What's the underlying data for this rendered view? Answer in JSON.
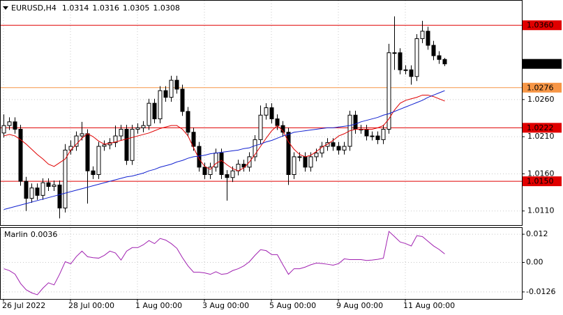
{
  "chart_data": {
    "type": "candlestick",
    "title": "EURUSD,H4",
    "categories": [
      "26 Jul 2022",
      null,
      null,
      null,
      null,
      null,
      null,
      null,
      null,
      null,
      null,
      null,
      "28 Jul 00:00",
      null,
      null,
      null,
      null,
      null,
      null,
      null,
      null,
      null,
      null,
      null,
      "1 Aug 00:00",
      null,
      null,
      null,
      null,
      null,
      null,
      null,
      null,
      null,
      null,
      null,
      "3 Aug 00:00",
      null,
      null,
      null,
      null,
      null,
      null,
      null,
      null,
      null,
      null,
      null,
      "5 Aug 00:00",
      null,
      null,
      null,
      null,
      null,
      null,
      null,
      null,
      null,
      null,
      null,
      "9 Aug 00:00",
      null,
      null,
      null,
      null,
      null,
      null,
      null,
      null,
      null,
      null,
      null,
      "11 Aug 00:00",
      null,
      null,
      null,
      null,
      null,
      null,
      null
    ],
    "open": [
      1.0215,
      1.0225,
      1.023,
      1.022,
      1.015,
      1.0127,
      1.0141,
      1.0131,
      1.0148,
      1.0143,
      1.0145,
      1.0114,
      1.0192,
      1.0197,
      1.0211,
      1.0214,
      1.0164,
      1.0159,
      1.0197,
      1.0199,
      1.0202,
      1.0211,
      1.022,
      1.0178,
      1.022,
      1.0222,
      1.0225,
      1.0255,
      1.0234,
      1.0272,
      1.0263,
      1.0286,
      1.0274,
      1.0244,
      1.0216,
      1.0197,
      1.0169,
      1.0159,
      1.0169,
      1.0188,
      1.0159,
      1.0155,
      1.0164,
      1.0173,
      1.0169,
      1.0183,
      1.0206,
      1.0239,
      1.0249,
      1.0234,
      1.0225,
      1.0216,
      1.0159,
      1.0183,
      1.0183,
      1.0169,
      1.0183,
      1.0188,
      1.0197,
      1.0202,
      1.0197,
      1.0192,
      1.0197,
      1.0239,
      1.022,
      1.022,
      1.0211,
      1.0211,
      1.0206,
      1.022,
      1.0323,
      1.0323,
      1.03,
      1.03,
      1.0291,
      1.0342,
      1.0352,
      1.0333,
      1.0319,
      1.0314
    ],
    "high": [
      1.024,
      1.0236,
      1.0236,
      1.0226,
      1.0156,
      1.0147,
      1.0147,
      1.0154,
      1.0154,
      1.0151,
      1.0151,
      1.02,
      1.0205,
      1.0217,
      1.023,
      1.022,
      1.017,
      1.0203,
      1.0205,
      1.0208,
      1.0225,
      1.0226,
      1.0226,
      1.0226,
      1.0228,
      1.0231,
      1.0261,
      1.0261,
      1.0278,
      1.0278,
      1.0292,
      1.0292,
      1.028,
      1.025,
      1.0222,
      1.0203,
      1.0175,
      1.0175,
      1.0194,
      1.0194,
      1.0165,
      1.017,
      1.0179,
      1.0179,
      1.0189,
      1.0212,
      1.0252,
      1.0255,
      1.0255,
      1.024,
      1.0231,
      1.0222,
      1.0189,
      1.0189,
      1.0189,
      1.0189,
      1.0194,
      1.0203,
      1.0208,
      1.0208,
      1.0203,
      1.0203,
      1.0245,
      1.0245,
      1.0226,
      1.0226,
      1.0217,
      1.0217,
      1.0226,
      1.0335,
      1.0372,
      1.0329,
      1.0306,
      1.0306,
      1.0348,
      1.0366,
      1.0358,
      1.0339,
      1.0325,
      1.0316
    ],
    "low": [
      1.0209,
      1.0219,
      1.0214,
      1.0144,
      1.011,
      1.0121,
      1.0125,
      1.0125,
      1.0137,
      1.0137,
      1.01,
      1.0108,
      1.0186,
      1.0191,
      1.0205,
      1.012,
      1.0153,
      1.0153,
      1.0191,
      1.0193,
      1.0196,
      1.0205,
      1.0172,
      1.0172,
      1.0214,
      1.0216,
      1.0219,
      1.0228,
      1.0228,
      1.0257,
      1.0257,
      1.0268,
      1.0238,
      1.021,
      1.0191,
      1.0163,
      1.0153,
      1.0153,
      1.0163,
      1.0153,
      1.0124,
      1.0149,
      1.0158,
      1.0163,
      1.0163,
      1.0177,
      1.02,
      1.0233,
      1.0228,
      1.0219,
      1.021,
      1.0145,
      1.0153,
      1.0177,
      1.0163,
      1.0163,
      1.0177,
      1.0182,
      1.0191,
      1.0191,
      1.0186,
      1.0186,
      1.0191,
      1.0214,
      1.0214,
      1.0205,
      1.0205,
      1.02,
      1.02,
      1.0214,
      1.03,
      1.0294,
      1.0294,
      1.028,
      1.0285,
      1.0336,
      1.0327,
      1.0313,
      1.0308,
      1.0305
    ],
    "close": [
      1.0225,
      1.023,
      1.022,
      1.015,
      1.0127,
      1.0141,
      1.0131,
      1.0148,
      1.0143,
      1.0145,
      1.0114,
      1.0192,
      1.0197,
      1.0211,
      1.0214,
      1.0164,
      1.0159,
      1.0197,
      1.0199,
      1.0202,
      1.0211,
      1.022,
      1.0178,
      1.022,
      1.0222,
      1.0225,
      1.0255,
      1.0234,
      1.0272,
      1.0263,
      1.0286,
      1.0274,
      1.0244,
      1.0216,
      1.0197,
      1.0169,
      1.0159,
      1.0169,
      1.0188,
      1.0159,
      1.0155,
      1.0164,
      1.0173,
      1.0169,
      1.0183,
      1.0206,
      1.0239,
      1.0249,
      1.0234,
      1.0225,
      1.0216,
      1.0159,
      1.0183,
      1.0183,
      1.0169,
      1.0183,
      1.0188,
      1.0197,
      1.0202,
      1.0197,
      1.0192,
      1.0197,
      1.0239,
      1.022,
      1.022,
      1.0211,
      1.0211,
      1.0206,
      1.022,
      1.0323,
      1.0323,
      1.03,
      1.03,
      1.0291,
      1.0342,
      1.0352,
      1.0333,
      1.0319,
      1.0314,
      1.0308
    ],
    "up_color": "#ffffff",
    "down_color": "#000000",
    "moving_averages": [
      {
        "color": "#e00000",
        "values": [
          1.0211,
          1.0213,
          1.0211,
          1.0206,
          1.02,
          1.0193,
          1.0186,
          1.018,
          1.0173,
          1.017,
          1.0175,
          1.018,
          1.0192,
          1.02,
          1.0208,
          1.0214,
          1.021,
          1.0204,
          1.02,
          1.0201,
          1.0203,
          1.0205,
          1.0207,
          1.0209,
          1.0211,
          1.0213,
          1.0215,
          1.0218,
          1.0221,
          1.0223,
          1.0225,
          1.0225,
          1.022,
          1.0211,
          1.0195,
          1.018,
          1.017,
          1.0166,
          1.0174,
          1.0178,
          1.0172,
          1.0167,
          1.0164,
          1.0168,
          1.0176,
          1.0186,
          1.0197,
          1.0208,
          1.0218,
          1.0225,
          1.0218,
          1.0203,
          1.0193,
          1.0186,
          1.0183,
          1.0185,
          1.019,
          1.0196,
          1.02,
          1.0205,
          1.0211,
          1.0214,
          1.0218,
          1.022,
          1.022,
          1.022,
          1.022,
          1.0222,
          1.0225,
          1.0234,
          1.0246,
          1.0255,
          1.0259,
          1.0261,
          1.0263,
          1.0266,
          1.0266,
          1.0264,
          1.0261,
          1.0258
        ]
      },
      {
        "color": "#1020d0",
        "values": [
          1.0112,
          1.0114,
          1.0116,
          1.0118,
          1.012,
          1.0122,
          1.0124,
          1.0126,
          1.0128,
          1.013,
          1.0132,
          1.0134,
          1.0136,
          1.0138,
          1.014,
          1.0142,
          1.0144,
          1.0146,
          1.0148,
          1.015,
          1.0152,
          1.0154,
          1.0156,
          1.0157,
          1.0159,
          1.0161,
          1.0164,
          1.0166,
          1.0169,
          1.0171,
          1.0173,
          1.0176,
          1.0178,
          1.0181,
          1.0183,
          1.0184,
          1.0185,
          1.0187,
          1.0188,
          1.0189,
          1.019,
          1.0191,
          1.0192,
          1.0194,
          1.0195,
          1.0198,
          1.02,
          1.0203,
          1.0205,
          1.0208,
          1.0211,
          1.0213,
          1.0216,
          1.0217,
          1.0218,
          1.0219,
          1.022,
          1.0221,
          1.0222,
          1.0222,
          1.0223,
          1.0224,
          1.0225,
          1.0227,
          1.023,
          1.0232,
          1.0234,
          1.0236,
          1.0239,
          1.0241,
          1.0244,
          1.0247,
          1.025,
          1.0253,
          1.0256,
          1.0259,
          1.0263,
          1.0266,
          1.0269,
          1.0272
        ]
      }
    ],
    "levels": [
      {
        "value": 1.036,
        "label": "1.0360",
        "color": "#e00000"
      },
      {
        "value": 1.0276,
        "label": "1.0276",
        "color": "#f79646"
      },
      {
        "value": 1.0222,
        "label": "1.0222",
        "color": "#e00000"
      },
      {
        "value": 1.015,
        "label": "1.0150",
        "color": "#e00000"
      }
    ],
    "ylim": [
      1.0091,
      1.0394
    ],
    "yticks": [
      {
        "value": 1.026,
        "label": "1.0260"
      },
      {
        "value": 1.021,
        "label": "1.0210"
      },
      {
        "value": 1.016,
        "label": "1.0160"
      },
      {
        "value": 1.011,
        "label": "1.0110"
      }
    ],
    "grid": true,
    "indicator": {
      "name": "Marlin",
      "value": 0.0036,
      "color": "#a020b0",
      "values": [
        -0.0027,
        -0.0035,
        -0.005,
        -0.009,
        -0.0117,
        -0.013,
        -0.0138,
        -0.011,
        -0.0087,
        -0.0096,
        -0.005,
        0.0003,
        -0.0006,
        0.0025,
        0.0048,
        0.0024,
        0.002,
        0.0018,
        0.003,
        0.0048,
        0.004,
        0.001,
        0.0048,
        0.0063,
        0.0063,
        0.0075,
        0.0093,
        0.008,
        0.0102,
        0.0095,
        0.008,
        0.006,
        0.002,
        -0.0015,
        -0.0042,
        -0.0042,
        -0.0045,
        -0.0051,
        -0.004,
        -0.0051,
        -0.0048,
        -0.0035,
        -0.0027,
        -0.0015,
        0.0003,
        0.003,
        0.0054,
        0.005,
        0.0033,
        0.0033,
        -0.001,
        -0.0051,
        -0.0027,
        -0.0027,
        -0.002,
        -0.001,
        -0.0003,
        -0.0005,
        -0.0008,
        -0.0012,
        -0.0005,
        0.0015,
        0.0012,
        0.0012,
        0.0012,
        0.0008,
        0.001,
        0.0013,
        0.0018,
        0.0132,
        0.011,
        0.0087,
        0.008,
        0.007,
        0.0114,
        0.011,
        0.009,
        0.007,
        0.0055,
        0.0036
      ],
      "ylim": [
        -0.0156,
        0.015
      ],
      "yticks": [
        0.012,
        {
          "value": 0,
          "label": "0.00"
        },
        -0.0126
      ]
    }
  }
}
